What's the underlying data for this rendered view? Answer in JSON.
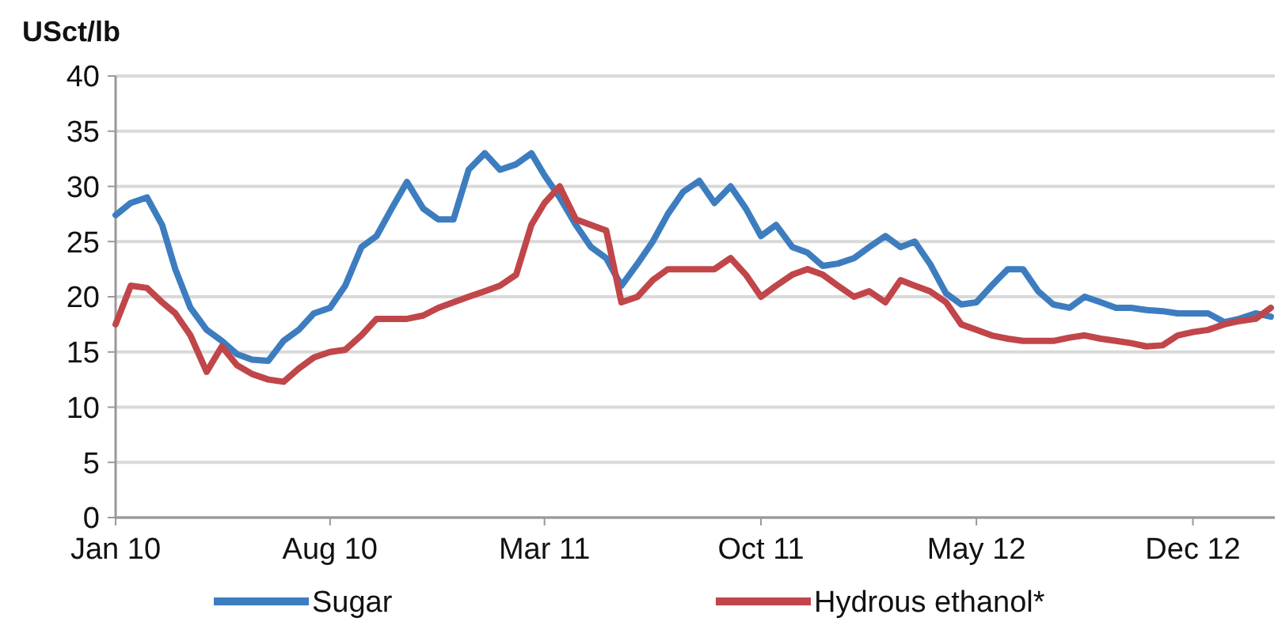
{
  "chart_data": {
    "type": "line",
    "ylabel": "USct/lb",
    "x": [
      "2010-01-01",
      "2010-01-16",
      "2010-02-01",
      "2010-02-16",
      "2010-03-01",
      "2010-03-16",
      "2010-04-01",
      "2010-04-16",
      "2010-05-01",
      "2010-05-16",
      "2010-06-01",
      "2010-06-16",
      "2010-07-01",
      "2010-07-16",
      "2010-08-01",
      "2010-08-16",
      "2010-09-01",
      "2010-09-16",
      "2010-10-01",
      "2010-10-16",
      "2010-11-01",
      "2010-11-16",
      "2010-12-01",
      "2010-12-16",
      "2011-01-01",
      "2011-01-16",
      "2011-02-01",
      "2011-02-16",
      "2011-03-01",
      "2011-03-16",
      "2011-04-01",
      "2011-04-16",
      "2011-05-01",
      "2011-05-16",
      "2011-06-01",
      "2011-06-16",
      "2011-07-01",
      "2011-07-16",
      "2011-08-01",
      "2011-08-16",
      "2011-09-01",
      "2011-09-16",
      "2011-10-01",
      "2011-10-16",
      "2011-11-01",
      "2011-11-16",
      "2011-12-01",
      "2011-12-16",
      "2012-01-01",
      "2012-01-16",
      "2012-02-01",
      "2012-02-16",
      "2012-03-01",
      "2012-03-16",
      "2012-04-01",
      "2012-04-16",
      "2012-05-01",
      "2012-05-16",
      "2012-06-01",
      "2012-06-16",
      "2012-07-01",
      "2012-07-16",
      "2012-08-01",
      "2012-08-16",
      "2012-09-01",
      "2012-09-16",
      "2012-10-01",
      "2012-10-16",
      "2012-11-01",
      "2012-11-16",
      "2012-12-01",
      "2012-12-16",
      "2013-01-01",
      "2013-01-16",
      "2013-02-01",
      "2013-02-16"
    ],
    "series": [
      {
        "name": "Sugar",
        "color": "#3d7dbf",
        "values": [
          27.4,
          28.5,
          29,
          26.5,
          22.5,
          19,
          17,
          16,
          14.8,
          14.3,
          14.2,
          16,
          17,
          18.5,
          19,
          21,
          24.5,
          25.5,
          28,
          30.4,
          28,
          27,
          27,
          31.5,
          33,
          31.5,
          32,
          33,
          31,
          29,
          26.5,
          24.5,
          23.5,
          21,
          23,
          25,
          27.5,
          29.5,
          30.5,
          28.5,
          30,
          28,
          25.5,
          26.5,
          24.5,
          24,
          22.8,
          23,
          23.5,
          24.5,
          25.5,
          24.5,
          25,
          23,
          20.3,
          19.3,
          19.5,
          21,
          22.5,
          22.5,
          20.5,
          19.3,
          19,
          20,
          19.5,
          19,
          19,
          18.8,
          18.7,
          18.5,
          18.5,
          18.5,
          17.7,
          18,
          18.5,
          18.2
        ]
      },
      {
        "name": "Hydrous ethanol*",
        "color": "#c0464a",
        "values": [
          17.5,
          21,
          20.8,
          19.5,
          18.5,
          16.5,
          13.2,
          15.5,
          13.8,
          13,
          12.5,
          12.3,
          13.5,
          14.5,
          15,
          15.2,
          16.5,
          18,
          18,
          18,
          18.3,
          19,
          19.5,
          20,
          20.5,
          21,
          22,
          26.5,
          28.5,
          30,
          27,
          26.5,
          26,
          19.5,
          20,
          21.5,
          22.5,
          22.5,
          22.5,
          22.5,
          23.5,
          22,
          20,
          21,
          22,
          22.5,
          22,
          21,
          20,
          20.5,
          19.5,
          21.5,
          21,
          20.5,
          19.5,
          17.5,
          17,
          16.5,
          16.2,
          16,
          16,
          16,
          16.3,
          16.5,
          16.2,
          16,
          15.8,
          15.5,
          15.6,
          16.5,
          16.8,
          17,
          17.5,
          17.8,
          18,
          19
        ]
      }
    ],
    "xlim": [
      "2010-01-01",
      "2013-02-20"
    ],
    "xticks": [
      {
        "value": "2010-01-01",
        "label": "Jan 10"
      },
      {
        "value": "2010-08-01",
        "label": "Aug 10"
      },
      {
        "value": "2011-03-01",
        "label": "Mar 11"
      },
      {
        "value": "2011-10-01",
        "label": "Oct 11"
      },
      {
        "value": "2012-05-01",
        "label": "May 12"
      },
      {
        "value": "2012-12-01",
        "label": "Dec 12"
      }
    ],
    "ylim": [
      0,
      40
    ],
    "yticks": [
      0,
      5,
      10,
      15,
      20,
      25,
      30,
      35,
      40
    ],
    "grid": "y",
    "legend": "bottom",
    "line_style": "solid",
    "marker": "none"
  }
}
